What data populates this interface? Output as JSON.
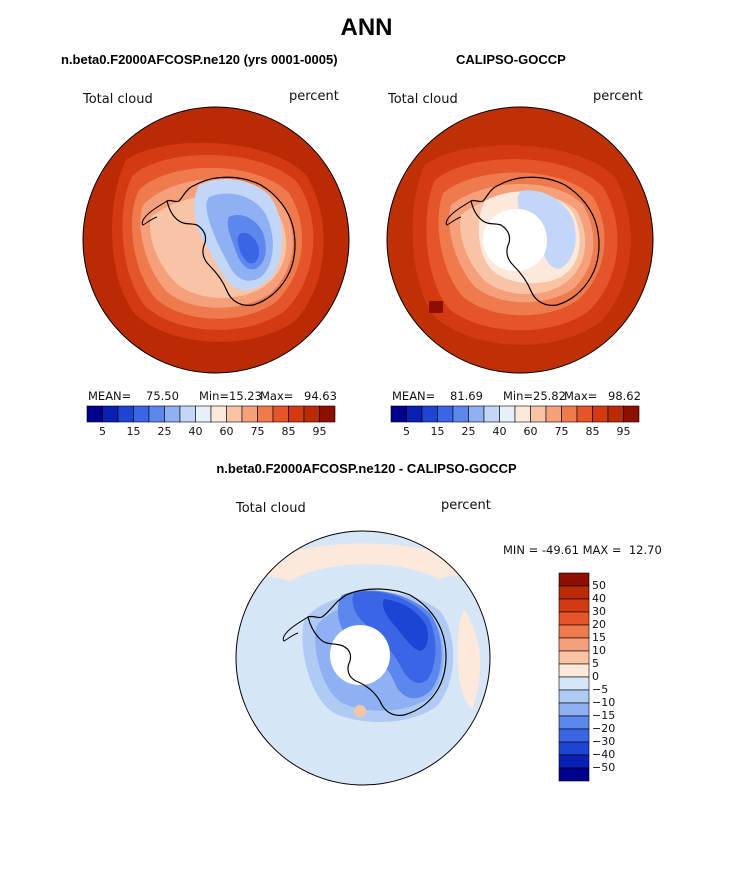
{
  "page": {
    "title": "ANN",
    "diff_title": "n.beta0.F2000AFCOSP.ne120 - CALIPSO-GOCCP"
  },
  "colors": {
    "ocean_model": "#BA2A04",
    "ocean_obs": "#C03005",
    "diff_background": "#D6E6F7",
    "outline": "#000000"
  },
  "chart_data": [
    {
      "type": "heatmap",
      "panel": "model",
      "title": "n.beta0.F2000AFCOSP.ne120 (yrs 0001-0005)",
      "left_label": "Total cloud",
      "right_label": "percent",
      "stats": {
        "mean_label": "MEAN=",
        "mean": "75.50",
        "min_label": "Min=",
        "min": "15.23",
        "max_label": "Max=",
        "max": "94.63"
      },
      "colorbar": {
        "levels": [
          5,
          10,
          15,
          20,
          25,
          30,
          40,
          50,
          60,
          70,
          75,
          80,
          85,
          90,
          95
        ],
        "tick_labels": [
          "5",
          "15",
          "25",
          "40",
          "60",
          "75",
          "85",
          "95"
        ],
        "colors": [
          "#00008C",
          "#0A1FB5",
          "#1E44D6",
          "#3A66E6",
          "#5C88EE",
          "#8FB0F2",
          "#C2D6F7",
          "#E6F0FB",
          "#FDE8DC",
          "#F9C4A6",
          "#F5A07A",
          "#EF7A4E",
          "#E5552A",
          "#D43A12",
          "#BA2A04",
          "#8C0F00"
        ]
      }
    },
    {
      "type": "heatmap",
      "panel": "observations",
      "title": "CALIPSO-GOCCP",
      "left_label": "Total cloud",
      "right_label": "percent",
      "stats": {
        "mean_label": "MEAN=",
        "mean": "81.69",
        "min_label": "Min=",
        "min": "25.82",
        "max_label": "Max=",
        "max": "98.62"
      },
      "colorbar": {
        "levels": [
          5,
          10,
          15,
          20,
          25,
          30,
          40,
          50,
          60,
          70,
          75,
          80,
          85,
          90,
          95
        ],
        "tick_labels": [
          "5",
          "15",
          "25",
          "40",
          "60",
          "75",
          "85",
          "95"
        ],
        "colors": [
          "#00008C",
          "#0A1FB5",
          "#1E44D6",
          "#3A66E6",
          "#5C88EE",
          "#8FB0F2",
          "#C2D6F7",
          "#E6F0FB",
          "#FDE8DC",
          "#F9C4A6",
          "#F5A07A",
          "#EF7A4E",
          "#E5552A",
          "#D43A12",
          "#BA2A04",
          "#8C0F00"
        ]
      }
    },
    {
      "type": "heatmap",
      "panel": "difference",
      "left_label": "Total cloud",
      "right_label": "percent",
      "stats_text": "MIN = -49.61 MAX =  12.70",
      "colorbar": {
        "orientation": "vertical",
        "tick_labels_top_to_bottom": [
          "50",
          "40",
          "30",
          "20",
          "15",
          "10",
          "5",
          "0",
          "−5",
          "−10",
          "−15",
          "−20",
          "−30",
          "−40",
          "−50"
        ],
        "colors_top_to_bottom": [
          "#8C0F00",
          "#BA2A04",
          "#D43A12",
          "#E5552A",
          "#EF7A4E",
          "#F5A07A",
          "#F9C4A6",
          "#FDE8DC",
          "#D6E6F7",
          "#AFCBF3",
          "#8FB0F2",
          "#5C88EE",
          "#3A66E6",
          "#1E44D6",
          "#0A1FB5",
          "#00008C"
        ]
      }
    }
  ]
}
